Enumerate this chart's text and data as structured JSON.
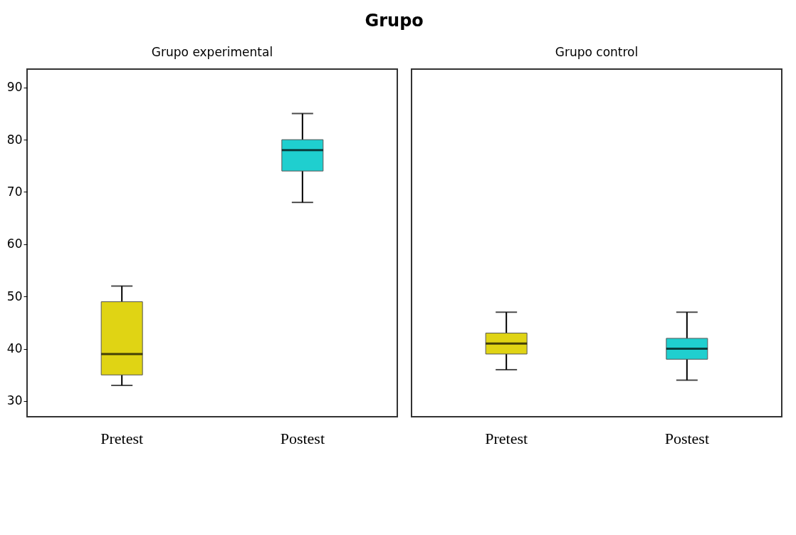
{
  "chart_data": [
    {
      "type": "box",
      "title": "Grupo experimental",
      "annotations": [
        "Grupo"
      ],
      "categories": [
        "Pretest",
        "Postest"
      ],
      "colors": [
        "#e0d414",
        "#1fcfcf"
      ],
      "ylim": [
        27,
        93.5
      ],
      "yticks": [
        30,
        40,
        50,
        60,
        70,
        80,
        90
      ],
      "grid": false,
      "boxes": [
        {
          "low": 33,
          "q1": 35,
          "median": 39,
          "q3": 49,
          "high": 52
        },
        {
          "low": 68,
          "q1": 74,
          "median": 78,
          "q3": 80,
          "high": 85
        }
      ]
    },
    {
      "type": "box",
      "title": "Grupo control",
      "categories": [
        "Pretest",
        "Postest"
      ],
      "colors": [
        "#e0d414",
        "#1fcfcf"
      ],
      "ylim": [
        27,
        93.5
      ],
      "yticks": [
        30,
        40,
        50,
        60,
        70,
        80,
        90
      ],
      "grid": false,
      "tick_labels": "x",
      "boxes": [
        {
          "low": 36,
          "q1": 39,
          "median": 41,
          "q3": 43,
          "high": 47
        },
        {
          "low": 34,
          "q1": 38,
          "median": 40,
          "q3": 42,
          "high": 47
        }
      ]
    }
  ]
}
